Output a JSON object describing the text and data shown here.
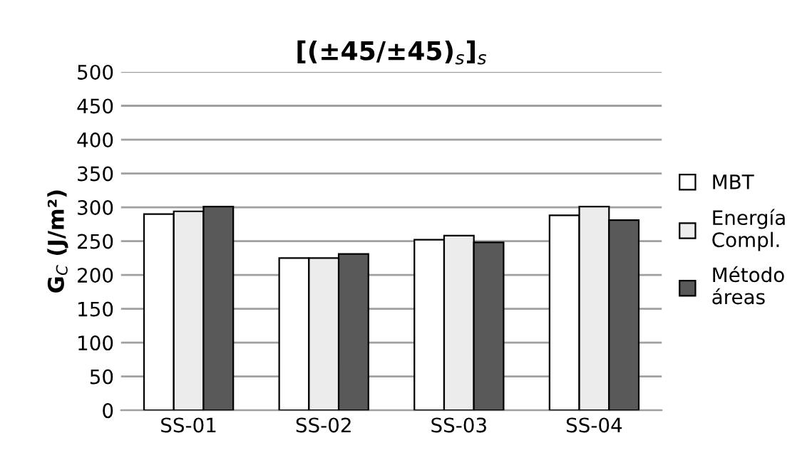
{
  "chart_data": {
    "type": "bar",
    "title": "[(±45/±45)$_{s}$]$_{s}$",
    "ylabel": "G$_{C}$ (J/m²)",
    "categories": [
      "SS-01",
      "SS-02",
      "SS-03",
      "SS-04"
    ],
    "series": [
      {
        "name": "MBT",
        "color": "#ffffff",
        "values": [
          290,
          225,
          252,
          288
        ]
      },
      {
        "name": "Energía\nCompl.",
        "color": "#ececec",
        "values": [
          294,
          225,
          258,
          301
        ]
      },
      {
        "name": "Método\náreas",
        "color": "#595959",
        "values": [
          301,
          231,
          248,
          281
        ]
      }
    ],
    "ylim": [
      0,
      500
    ],
    "yticks": [
      0,
      50,
      100,
      150,
      200,
      250,
      300,
      350,
      400,
      450,
      500
    ],
    "grid": "y",
    "legend": "right"
  }
}
